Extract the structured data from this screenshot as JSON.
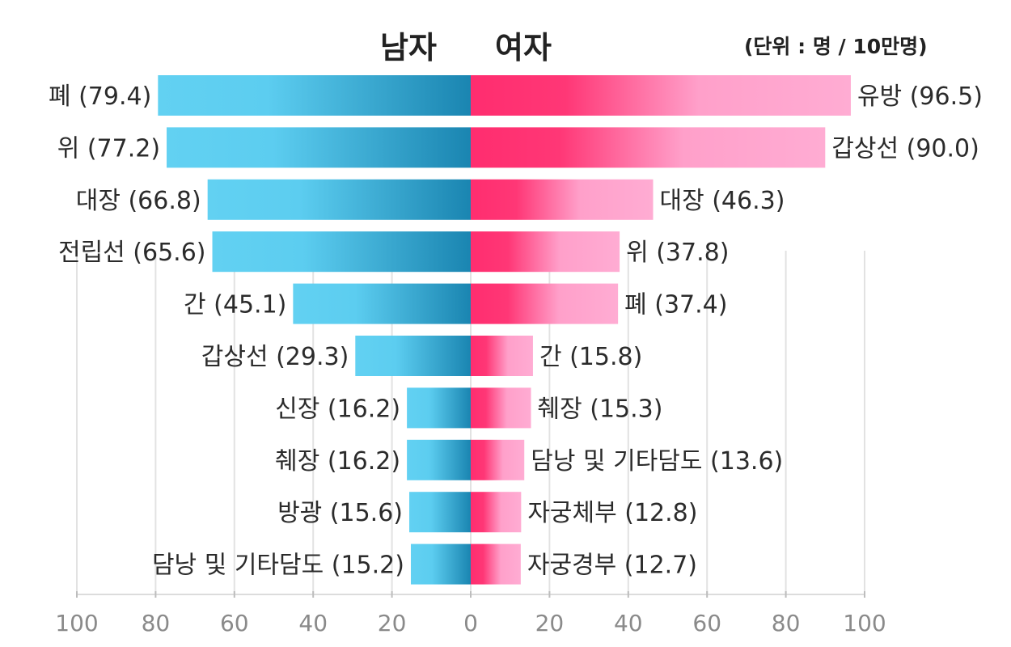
{
  "chart_data": {
    "type": "bar",
    "orientation": "horizontal-butterfly",
    "unit": "(단위 : 명 / 10만명)",
    "xlim": [
      0,
      100
    ],
    "grid": true,
    "series": [
      {
        "name": "남자",
        "side": "left",
        "categories": [
          "폐",
          "위",
          "대장",
          "전립선",
          "간",
          "갑상선",
          "신장",
          "췌장",
          "방광",
          "담낭 및 기타담도"
        ],
        "values": [
          79.4,
          77.2,
          66.8,
          65.6,
          45.1,
          29.3,
          16.2,
          16.2,
          15.6,
          15.2
        ],
        "labels": [
          "폐 (79.4)",
          "위 (77.2)",
          "대장 (66.8)",
          "전립선 (65.6)",
          "간 (45.1)",
          "갑상선 (29.3)",
          "신장 (16.2)",
          "췌장 (16.2)",
          "방광 (15.6)",
          "담낭 및 기타담도 (15.2)"
        ],
        "colors": [
          "#62d1f2",
          "#1a85b1"
        ]
      },
      {
        "name": "여자",
        "side": "right",
        "categories": [
          "유방",
          "갑상선",
          "대장",
          "위",
          "폐",
          "간",
          "췌장",
          "담낭 및 기타담도",
          "자궁체부",
          "자궁경부"
        ],
        "values": [
          96.5,
          90.0,
          46.3,
          37.8,
          37.4,
          15.8,
          15.3,
          13.6,
          12.8,
          12.7
        ],
        "labels": [
          "유방 (96.5)",
          "갑상선 (90.0)",
          "대장 (46.3)",
          "위 (37.8)",
          "폐 (37.4)",
          "간 (15.8)",
          "췌장 (15.3)",
          "담낭 및 기타담도 (13.6)",
          "자궁체부 (12.8)",
          "자궁경부 (12.7)"
        ],
        "colors": [
          "#ff2d6f",
          "#ffacd3"
        ]
      }
    ],
    "x_ticks_left": [
      "100",
      "80",
      "60",
      "40",
      "20",
      "0"
    ],
    "x_ticks_right": [
      "20",
      "40",
      "60",
      "80",
      "100"
    ]
  }
}
